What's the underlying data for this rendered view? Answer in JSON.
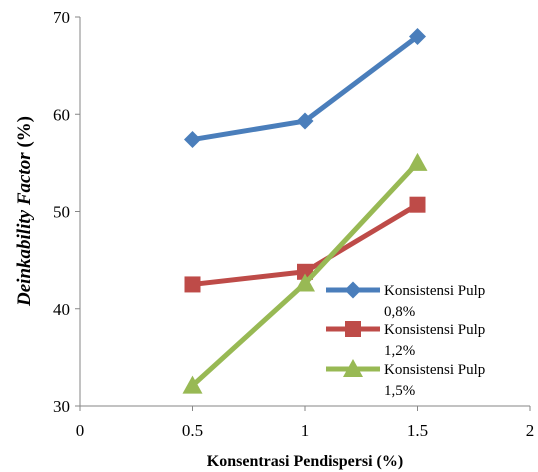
{
  "chart_data": {
    "type": "line",
    "xlabel": "Konsentrasi Pendispersi (%)",
    "ylabel_italic": "Deinkability Factor",
    "ylabel_suffix": " (%)",
    "xlim": [
      0,
      2
    ],
    "ylim": [
      30,
      70
    ],
    "xticks": [
      0,
      0.5,
      1,
      1.5,
      2
    ],
    "xtick_labels": [
      "0",
      "0.5",
      "1",
      "1.5",
      "2"
    ],
    "yticks": [
      30,
      40,
      50,
      60,
      70
    ],
    "ytick_labels": [
      "30",
      "40",
      "50",
      "60",
      "70"
    ],
    "grid": false,
    "legend_position": "center-right",
    "series": [
      {
        "name_line1": "Konsistensi Pulp",
        "name_line2": "0,8%",
        "color": "#4a7ebb",
        "marker": "diamond",
        "x": [
          0.5,
          1,
          1.5
        ],
        "y": [
          57.4,
          59.3,
          68.0
        ]
      },
      {
        "name_line1": "Konsistensi Pulp",
        "name_line2": "1,2%",
        "color": "#be4b48",
        "marker": "square",
        "x": [
          0.5,
          1,
          1.5
        ],
        "y": [
          42.5,
          43.8,
          50.7
        ]
      },
      {
        "name_line1": "Konsistensi Pulp",
        "name_line2": "1,5%",
        "color": "#98b954",
        "marker": "triangle",
        "x": [
          0.5,
          1,
          1.5
        ],
        "y": [
          32.1,
          42.6,
          55.0
        ]
      }
    ]
  }
}
